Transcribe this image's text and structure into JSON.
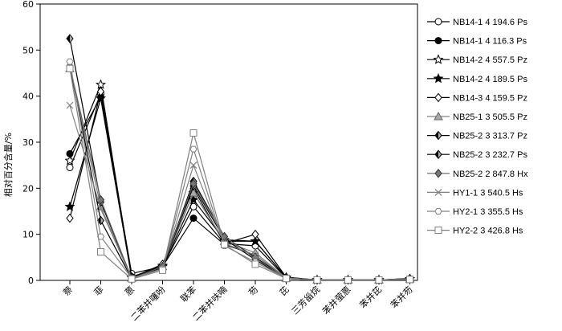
{
  "chart_data": {
    "type": "line",
    "ylabel": "相对百分含量/%",
    "xlabel": "",
    "ylim": [
      0,
      60
    ],
    "yticks": [
      "0",
      "10",
      "20",
      "30",
      "40",
      "50",
      "60"
    ],
    "categories": [
      "萘",
      "菲",
      "蒽",
      "二苯并噻吩",
      "联苯",
      "二苯并呋喃",
      "芴",
      "芘",
      "三芳甾烷",
      "苯并萤蒽",
      "苯并芘",
      "苯并芴"
    ],
    "grid": false,
    "legend_position": "right",
    "series": [
      {
        "name": "NB14-1  4 194.6 Ps",
        "marker": "circle-open",
        "color": "#000000",
        "values": [
          24.5,
          40.5,
          1.5,
          3.0,
          16.0,
          8.0,
          7.5,
          0.5,
          0.1,
          0.1,
          0.1,
          0.3
        ]
      },
      {
        "name": "NB14-1  4 116.3 Ps",
        "marker": "circle-filled",
        "color": "#000000",
        "values": [
          27.5,
          39.8,
          0.8,
          3.0,
          13.5,
          7.8,
          5.5,
          0.4,
          0.1,
          0.1,
          0.1,
          0.3
        ]
      },
      {
        "name": "NB14-2  4 557.5 Pz",
        "marker": "star-open",
        "color": "#000000",
        "values": [
          26.0,
          42.5,
          0.6,
          3.2,
          19.0,
          8.5,
          8.5,
          0.6,
          0.1,
          0.1,
          0.1,
          0.3
        ]
      },
      {
        "name": "NB14-2  4 189.5 Ps",
        "marker": "star-filled",
        "color": "#000000",
        "values": [
          16.0,
          39.5,
          0.6,
          3.0,
          17.5,
          8.8,
          8.5,
          0.6,
          0.1,
          0.1,
          0.1,
          0.3
        ]
      },
      {
        "name": "NB14-3  4 159.5 Pz",
        "marker": "diamond-open",
        "color": "#000000",
        "values": [
          13.5,
          41.0,
          0.6,
          3.5,
          20.0,
          8.0,
          10.0,
          0.7,
          0.1,
          0.1,
          0.1,
          0.4
        ]
      },
      {
        "name": "NB25-1  3 505.5 Pz",
        "marker": "triangle-gray",
        "color": "#808080",
        "values": [
          46.0,
          16.0,
          0.5,
          3.0,
          19.0,
          8.5,
          6.0,
          0.5,
          0.1,
          0.1,
          0.1,
          0.3
        ]
      },
      {
        "name": "NB25-2  3 313.7 Pz",
        "marker": "diamond-half",
        "color": "#000000",
        "values": [
          52.5,
          17.0,
          0.5,
          3.0,
          21.5,
          9.5,
          5.0,
          0.5,
          0.1,
          0.1,
          0.1,
          0.4
        ]
      },
      {
        "name": "NB25-2  3 232.7 Ps",
        "marker": "diamond-half",
        "color": "#000000",
        "values": [
          46.5,
          13.0,
          0.4,
          2.8,
          20.5,
          9.0,
          4.5,
          0.4,
          0.1,
          0.1,
          0.1,
          0.3
        ]
      },
      {
        "name": "NB25-2  2 847.8 Hx",
        "marker": "diamond-gray",
        "color": "#606060",
        "values": [
          46.5,
          17.5,
          0.4,
          3.0,
          21.0,
          9.5,
          4.8,
          0.4,
          0.1,
          0.1,
          0.1,
          0.3
        ]
      },
      {
        "name": "HY1-1 3 540.5 Hs",
        "marker": "x",
        "color": "#808080",
        "values": [
          38.0,
          15.5,
          0.4,
          2.5,
          25.0,
          8.0,
          5.5,
          0.5,
          0.1,
          0.1,
          0.1,
          0.3
        ]
      },
      {
        "name": "HY2-1 3 355.5 Hs",
        "marker": "hexagon-open",
        "color": "#808080",
        "values": [
          47.5,
          9.5,
          0.5,
          2.5,
          28.5,
          7.5,
          4.0,
          0.5,
          0.1,
          0.1,
          0.1,
          0.3
        ]
      },
      {
        "name": "HY2-2 3 426.8 Hs",
        "marker": "square-open",
        "color": "#808080",
        "values": [
          46.0,
          6.2,
          0.3,
          2.2,
          32.0,
          7.8,
          3.5,
          0.4,
          0.1,
          0.1,
          0.1,
          0.2
        ]
      }
    ]
  }
}
